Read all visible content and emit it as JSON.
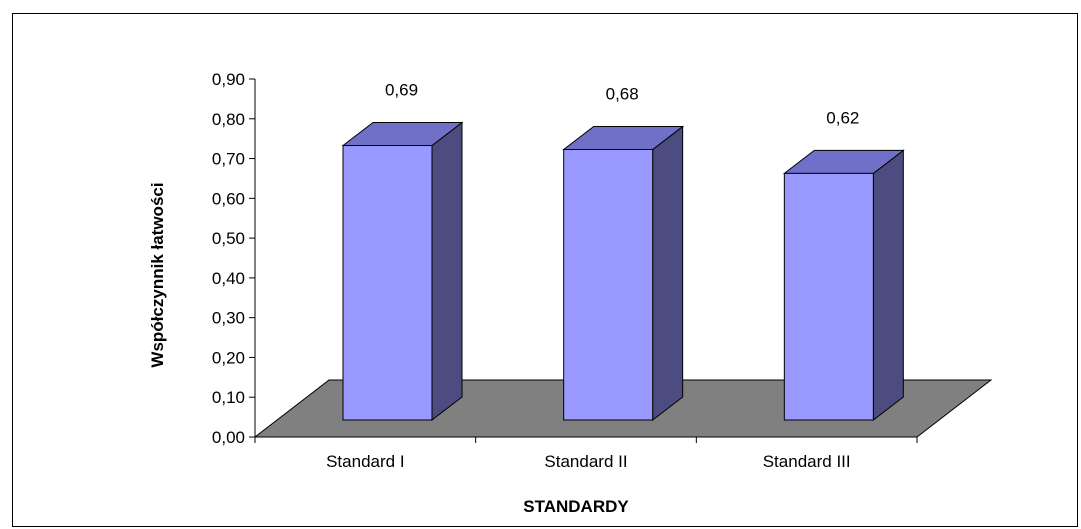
{
  "chart_data": {
    "type": "bar",
    "categories": [
      "Standard I",
      "Standard II",
      "Standard III"
    ],
    "values": [
      0.69,
      0.68,
      0.62
    ],
    "value_labels": [
      "0,69",
      "0,68",
      "0,62"
    ],
    "title": "",
    "xlabel": "STANDARDY",
    "ylabel": "Współczynnik łatwości",
    "ylim": [
      0,
      0.9
    ],
    "yticks": [
      "0,00",
      "0,10",
      "0,20",
      "0,30",
      "0,40",
      "0,50",
      "0,60",
      "0,70",
      "0,80",
      "0,90"
    ],
    "grid": false,
    "legend": "none",
    "style": "3d-column",
    "colors": {
      "bar_front": "#9999FF",
      "bar_top": "#7070C8",
      "bar_side": "#4C4C80",
      "floor": "#808080"
    }
  }
}
